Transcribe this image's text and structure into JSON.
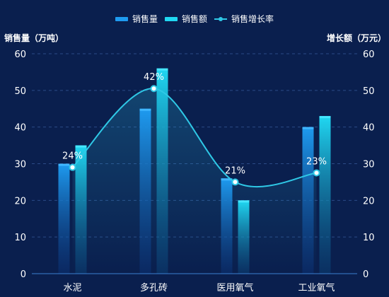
{
  "chart_data": {
    "type": "bar",
    "categories": [
      "水泥",
      "多孔砖",
      "医用氧气",
      "工业氧气"
    ],
    "series": [
      {
        "name": "销售量",
        "kind": "bar",
        "axis": "left",
        "values": [
          30,
          45,
          26,
          40
        ]
      },
      {
        "name": "销售额",
        "kind": "bar",
        "axis": "right",
        "values": [
          35,
          56,
          20,
          43
        ]
      },
      {
        "name": "销售增长率",
        "kind": "line",
        "smooth": true,
        "values": [
          29,
          50.5,
          25,
          27.5
        ],
        "labels": [
          "24%",
          "42%",
          "21%",
          "23%"
        ]
      }
    ],
    "ylabel_left": "销售量（万吨）",
    "ylabel_right": "增长额（万元）",
    "ylim_left": [
      0,
      60
    ],
    "ylim_right": [
      0,
      60
    ],
    "yticks": [
      0,
      10,
      20,
      30,
      40,
      50,
      60
    ],
    "grid": true,
    "legend_position": "top-center",
    "colors": {
      "background": "#0a1f4e",
      "bar1_top": "#1e9bf0",
      "bar2_top": "#1fd6f0",
      "line": "#2fc8e6",
      "grid": "#2a4a86",
      "axis": "#3a7fd0"
    }
  }
}
